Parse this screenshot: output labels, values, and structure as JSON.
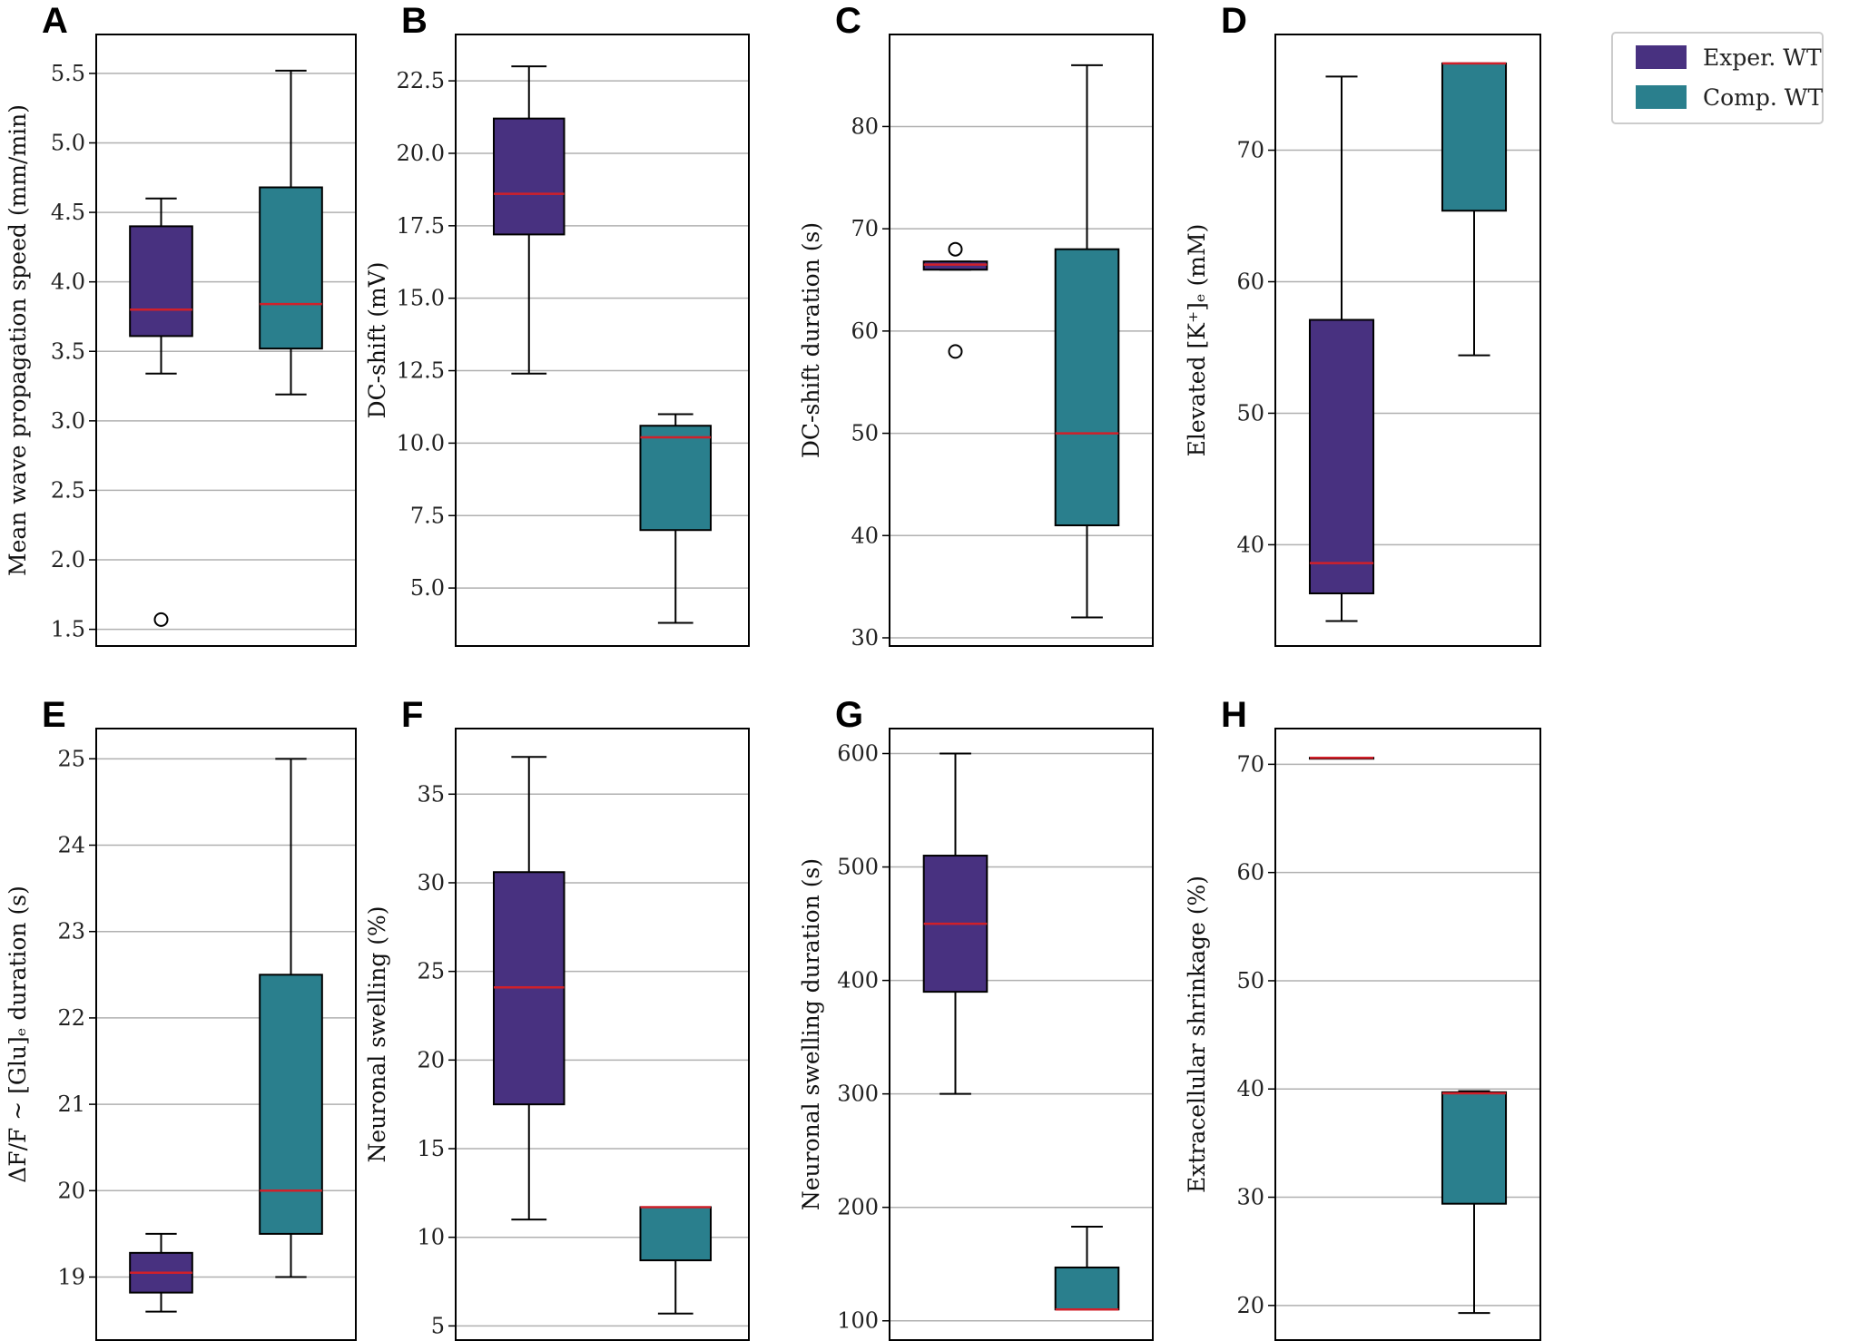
{
  "legend": {
    "entries": [
      {
        "name": "Exper. WT",
        "color": "#483180"
      },
      {
        "name": "Comp. WT",
        "color": "#2a7f8d"
      }
    ]
  },
  "colors": {
    "median": "#d0202a",
    "grid": "#b0b0b0",
    "frame": "#000000"
  },
  "chart_data": [
    {
      "type": "box",
      "panel": "A",
      "ylabel": "Mean wave propagation speed (mm/min)",
      "ylim": [
        1.38,
        5.78
      ],
      "yticks": [
        1.5,
        2.0,
        2.5,
        3.0,
        3.5,
        4.0,
        4.5,
        5.0,
        5.5
      ],
      "yticklabels": [
        "1.5",
        "2.0",
        "2.5",
        "3.0",
        "3.5",
        "4.0",
        "4.5",
        "5.0",
        "5.5"
      ],
      "series": [
        {
          "name": "Exper. WT",
          "whislo": 3.34,
          "q1": 3.61,
          "med": 3.8,
          "q3": 4.4,
          "whishi": 4.6,
          "fliers": [
            1.57
          ]
        },
        {
          "name": "Comp. WT",
          "whislo": 3.19,
          "q1": 3.52,
          "med": 3.84,
          "q3": 4.68,
          "whishi": 5.52,
          "fliers": []
        }
      ]
    },
    {
      "type": "box",
      "panel": "B",
      "ylabel": "DC-shift (mV)",
      "ylim": [
        3.0,
        24.1
      ],
      "yticks": [
        5.0,
        7.5,
        10.0,
        12.5,
        15.0,
        17.5,
        20.0,
        22.5
      ],
      "yticklabels": [
        "5.0",
        "7.5",
        "10.0",
        "12.5",
        "15.0",
        "17.5",
        "20.0",
        "22.5"
      ],
      "series": [
        {
          "name": "Exper. WT",
          "whislo": 12.4,
          "q1": 17.2,
          "med": 18.6,
          "q3": 21.2,
          "whishi": 23.0,
          "fliers": []
        },
        {
          "name": "Comp. WT",
          "whislo": 3.8,
          "q1": 7.0,
          "med": 10.2,
          "q3": 10.6,
          "whishi": 11.0,
          "fliers": []
        }
      ]
    },
    {
      "type": "box",
      "panel": "C",
      "ylabel": "DC-shift duration (s)",
      "ylim": [
        29.2,
        89.0
      ],
      "yticks": [
        30,
        40,
        50,
        60,
        70,
        80
      ],
      "yticklabels": [
        "30",
        "40",
        "50",
        "60",
        "70",
        "80"
      ],
      "series": [
        {
          "name": "Exper. WT",
          "whislo": 66.0,
          "q1": 66.0,
          "med": 66.5,
          "q3": 66.8,
          "whishi": 66.8,
          "fliers": [
            68.0,
            58.0
          ]
        },
        {
          "name": "Comp. WT",
          "whislo": 32.0,
          "q1": 41.0,
          "med": 50.0,
          "q3": 68.0,
          "whishi": 86.0,
          "fliers": []
        }
      ]
    },
    {
      "type": "box",
      "panel": "D",
      "ylabel": "Elevated [K⁺]ₑ (mM)",
      "ylim": [
        32.3,
        78.8
      ],
      "yticks": [
        40,
        50,
        60,
        70
      ],
      "yticklabels": [
        "40",
        "50",
        "60",
        "70"
      ],
      "series": [
        {
          "name": "Exper. WT",
          "whislo": 34.2,
          "q1": 36.3,
          "med": 38.6,
          "q3": 57.1,
          "whishi": 75.6,
          "fliers": []
        },
        {
          "name": "Comp. WT",
          "whislo": 54.4,
          "q1": 65.4,
          "med": 76.6,
          "q3": 76.6,
          "whishi": 76.6,
          "fliers": []
        }
      ]
    },
    {
      "type": "box",
      "panel": "E",
      "ylabel": "ΔF/F ~ [Glu]ₑ duration (s)",
      "ylim": [
        18.27,
        25.35
      ],
      "yticks": [
        19,
        20,
        21,
        22,
        23,
        24,
        25
      ],
      "yticklabels": [
        "19",
        "20",
        "21",
        "22",
        "23",
        "24",
        "25"
      ],
      "series": [
        {
          "name": "Exper. WT",
          "whislo": 18.6,
          "q1": 18.82,
          "med": 19.05,
          "q3": 19.28,
          "whishi": 19.5,
          "fliers": []
        },
        {
          "name": "Comp. WT",
          "whislo": 19.0,
          "q1": 19.5,
          "med": 20.0,
          "q3": 22.5,
          "whishi": 25.0,
          "fliers": []
        }
      ]
    },
    {
      "type": "box",
      "panel": "F",
      "ylabel": "Neuronal swelling (%)",
      "ylim": [
        4.2,
        38.7
      ],
      "yticks": [
        5,
        10,
        15,
        20,
        25,
        30,
        35
      ],
      "yticklabels": [
        "5",
        "10",
        "15",
        "20",
        "25",
        "30",
        "35"
      ],
      "series": [
        {
          "name": "Exper. WT",
          "whislo": 11.0,
          "q1": 17.5,
          "med": 24.1,
          "q3": 30.6,
          "whishi": 37.1,
          "fliers": []
        },
        {
          "name": "Comp. WT",
          "whislo": 5.7,
          "q1": 8.7,
          "med": 11.7,
          "q3": 11.7,
          "whishi": 11.7,
          "fliers": []
        }
      ]
    },
    {
      "type": "box",
      "panel": "G",
      "ylabel": "Neuronal swelling duration (s)",
      "ylim": [
        83,
        622
      ],
      "yticks": [
        100,
        200,
        300,
        400,
        500,
        600
      ],
      "yticklabels": [
        "100",
        "200",
        "300",
        "400",
        "500",
        "600"
      ],
      "series": [
        {
          "name": "Exper. WT",
          "whislo": 300,
          "q1": 390,
          "med": 450,
          "q3": 510,
          "whishi": 600,
          "fliers": []
        },
        {
          "name": "Comp. WT",
          "whislo": 110,
          "q1": 110,
          "med": 110,
          "q3": 147,
          "whishi": 183,
          "fliers": []
        }
      ]
    },
    {
      "type": "box",
      "panel": "H",
      "ylabel": "Extracellular shrinkage (%)",
      "ylim": [
        16.8,
        73.3
      ],
      "yticks": [
        20,
        30,
        40,
        50,
        60,
        70
      ],
      "yticklabels": [
        "20",
        "30",
        "40",
        "50",
        "60",
        "70"
      ],
      "series": [
        {
          "name": "Exper. WT",
          "whislo": 70.6,
          "q1": 70.6,
          "med": 70.6,
          "q3": 70.6,
          "whishi": 70.6,
          "fliers": []
        },
        {
          "name": "Comp. WT",
          "whislo": 19.3,
          "q1": 29.4,
          "med": 39.6,
          "q3": 39.7,
          "whishi": 39.8,
          "fliers": []
        }
      ]
    }
  ]
}
